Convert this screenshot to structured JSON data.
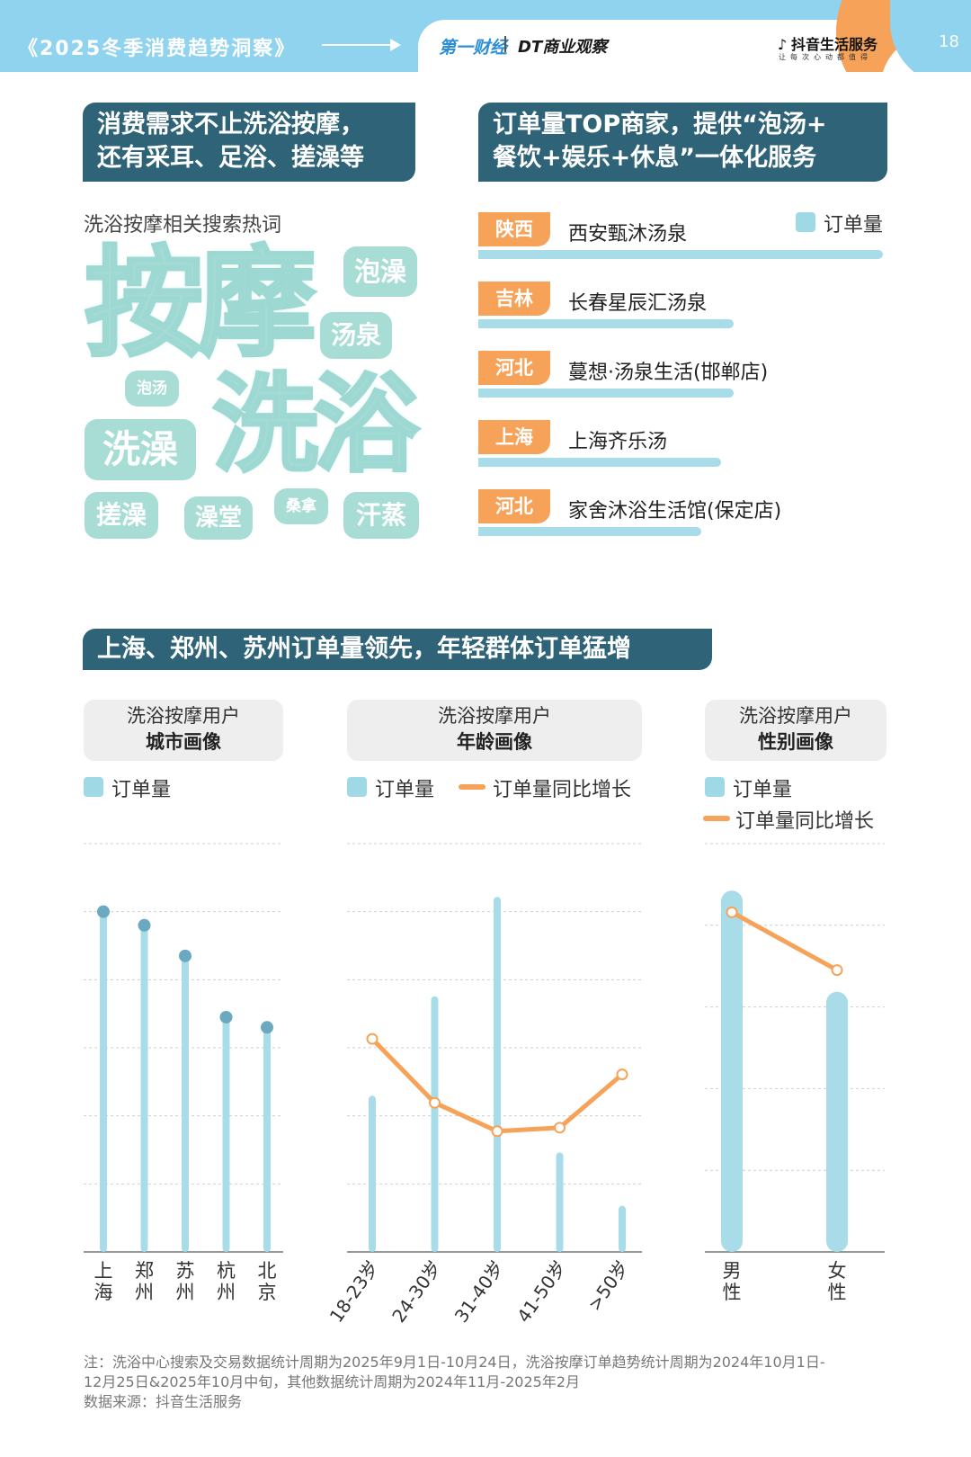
{
  "header": {
    "series_title": "《2025冬季消费趋势洞察》",
    "logo_yicai": "第一财经",
    "logo_dt": "DT商业观察",
    "logo_douyin": "抖音生活服务",
    "douyin_slogan": "让每次心动都值得",
    "page_number": "18"
  },
  "section1": {
    "title_line1": "消费需求不止洗浴按摩，",
    "title_line2": "还有采耳、足浴、搓澡等"
  },
  "section2": {
    "title_line1": "订单量TOP商家，提供“泡汤+",
    "title_line2": "餐饮+娱乐+休息”一体化服务"
  },
  "section3": {
    "title": "上海、郑州、苏州订单量领先，年轻群体订单猛增"
  },
  "word_cloud": {
    "label": "洗浴按摩相关搜索热词",
    "words": {
      "anmo": "按摩",
      "xiyu": "洗浴",
      "paozao": "泡澡",
      "tangquan": "汤泉",
      "paotang": "泡汤",
      "xizao": "洗澡",
      "cuozao": "搓澡",
      "zaotang": "澡堂",
      "sangna": "桑拿",
      "hanzheng": "汗蒸"
    }
  },
  "top_merchants": {
    "legend": "订单量",
    "items": [
      {
        "province": "陕西",
        "name": "西安甄沐汤泉",
        "order_share": 1.0
      },
      {
        "province": "吉林",
        "name": "长春星辰汇汤泉",
        "order_share": 0.63
      },
      {
        "province": "河北",
        "name": "蔓想·汤泉生活(邯郸店)",
        "order_share": 0.63
      },
      {
        "province": "上海",
        "name": "上海齐乐汤",
        "order_share": 0.6
      },
      {
        "province": "河北",
        "name": "家舍沐浴生活馆(保定店)",
        "order_share": 0.55
      }
    ]
  },
  "panels": {
    "city": {
      "title_line1": "洗浴按摩用户",
      "title_line2": "城市画像",
      "legend_orders": "订单量"
    },
    "age": {
      "title_line1": "洗浴按摩用户",
      "title_line2": "年龄画像",
      "legend_orders": "订单量",
      "legend_growth": "订单量同比增长"
    },
    "gender": {
      "title_line1": "洗浴按摩用户",
      "title_line2": "性别画像",
      "legend_orders": "订单量",
      "legend_growth": "订单量同比增长"
    }
  },
  "chart_data": [
    {
      "type": "bar",
      "title": "洗浴按摩用户城市画像",
      "categories": [
        "上海",
        "郑州",
        "苏州",
        "杭州",
        "北京"
      ],
      "series": [
        {
          "name": "订单量",
          "values": [
            100,
            96,
            87,
            69,
            66
          ]
        }
      ],
      "ylim": [
        0,
        120
      ],
      "grid": true,
      "colors": {
        "bar": "#a7dce8",
        "dot": "#6aa9bf"
      }
    },
    {
      "type": "bar",
      "title": "洗浴按摩用户年龄画像",
      "categories": [
        "18-23岁",
        "24-30岁",
        "31-40岁",
        "41-50岁",
        ">50岁"
      ],
      "series": [
        {
          "name": "订单量",
          "values": [
            44,
            72,
            100,
            28,
            13
          ]
        },
        {
          "name": "订单量同比增长",
          "type": "line",
          "values": [
            60,
            42,
            34,
            35,
            50
          ]
        }
      ],
      "ylim": [
        0,
        115
      ],
      "grid": true,
      "colors": {
        "bar": "#a7dce8",
        "line": "#f6a259"
      }
    },
    {
      "type": "bar",
      "title": "洗浴按摩用户性别画像",
      "categories": [
        "男性",
        "女性"
      ],
      "series": [
        {
          "name": "订单量",
          "values": [
            100,
            72
          ]
        },
        {
          "name": "订单量同比增长",
          "type": "line",
          "values": [
            94,
            78
          ]
        }
      ],
      "ylim": [
        0,
        113
      ],
      "grid": true,
      "colors": {
        "bar": "#a7dce8",
        "line": "#f6a259"
      }
    }
  ],
  "footnote": {
    "line1": "注：洗浴中心搜索及交易数据统计周期为2025年9月1日-10月24日，洗浴按摩订单趋势统计周期为2024年10月1日-",
    "line2": "12月25日&2025年10月中旬，其他数据统计周期为2024年11月-2025年2月",
    "line3": "数据来源：抖音生活服务"
  },
  "colors": {
    "header_bar": "#2f6478",
    "accent_orange": "#f6a259",
    "accent_blue": "#8fd3ee",
    "bar_blue": "#a7dce8",
    "cloud_teal": "#a8ddd6"
  }
}
